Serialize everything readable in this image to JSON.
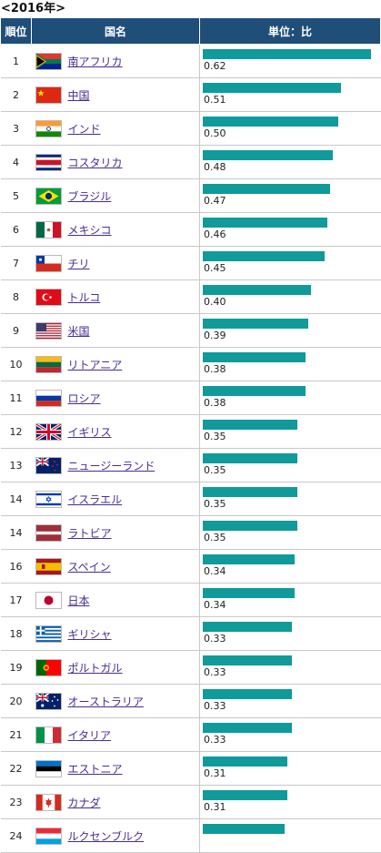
{
  "caption": "<2016年>",
  "headers": {
    "rank": "順位",
    "country": "国名",
    "unit": "単位：比"
  },
  "chart_data": {
    "type": "bar",
    "orientation": "horizontal",
    "xlim": [
      0,
      0.63
    ],
    "bar_color": "#109a9a",
    "header_color": "#1f4e79",
    "link_color": "#4a2d8f",
    "rows": [
      {
        "rank": "1",
        "country": "南アフリカ",
        "value": "0.62",
        "flag": "south-africa"
      },
      {
        "rank": "2",
        "country": "中国",
        "value": "0.51",
        "flag": "china"
      },
      {
        "rank": "3",
        "country": "インド",
        "value": "0.50",
        "flag": "india"
      },
      {
        "rank": "4",
        "country": "コスタリカ",
        "value": "0.48",
        "flag": "costa-rica"
      },
      {
        "rank": "5",
        "country": "ブラジル",
        "value": "0.47",
        "flag": "brazil"
      },
      {
        "rank": "6",
        "country": "メキシコ",
        "value": "0.46",
        "flag": "mexico"
      },
      {
        "rank": "7",
        "country": "チリ",
        "value": "0.45",
        "flag": "chile"
      },
      {
        "rank": "8",
        "country": "トルコ",
        "value": "0.40",
        "flag": "turkey"
      },
      {
        "rank": "9",
        "country": "米国",
        "value": "0.39",
        "flag": "usa"
      },
      {
        "rank": "10",
        "country": "リトアニア",
        "value": "0.38",
        "flag": "lithuania"
      },
      {
        "rank": "11",
        "country": "ロシア",
        "value": "0.38",
        "flag": "russia"
      },
      {
        "rank": "12",
        "country": "イギリス",
        "value": "0.35",
        "flag": "uk"
      },
      {
        "rank": "13",
        "country": "ニュージーランド",
        "value": "0.35",
        "flag": "new-zealand"
      },
      {
        "rank": "14",
        "country": "イスラエル",
        "value": "0.35",
        "flag": "israel"
      },
      {
        "rank": "14",
        "country": "ラトビア",
        "value": "0.35",
        "flag": "latvia"
      },
      {
        "rank": "16",
        "country": "スペイン",
        "value": "0.34",
        "flag": "spain"
      },
      {
        "rank": "17",
        "country": "日本",
        "value": "0.34",
        "flag": "japan"
      },
      {
        "rank": "18",
        "country": "ギリシャ",
        "value": "0.33",
        "flag": "greece"
      },
      {
        "rank": "19",
        "country": "ポルトガル",
        "value": "0.33",
        "flag": "portugal"
      },
      {
        "rank": "20",
        "country": "オーストラリア",
        "value": "0.33",
        "flag": "australia"
      },
      {
        "rank": "21",
        "country": "イタリア",
        "value": "0.33",
        "flag": "italy"
      },
      {
        "rank": "22",
        "country": "エストニア",
        "value": "0.31",
        "flag": "estonia"
      },
      {
        "rank": "23",
        "country": "カナダ",
        "value": "0.31",
        "flag": "canada"
      },
      {
        "rank": "24",
        "country": "ルクセンブルク",
        "value": "",
        "flag": "luxembourg"
      }
    ]
  }
}
